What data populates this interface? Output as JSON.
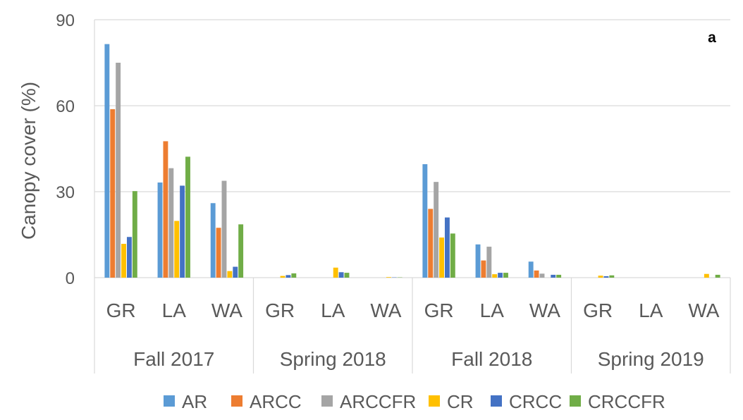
{
  "panel_label": "a",
  "chart_data": {
    "type": "bar",
    "title": "",
    "xlabel": "",
    "ylabel": "Canopy cover (%)",
    "ylim": [
      0,
      90
    ],
    "yticks": [
      "0",
      "30",
      "60",
      "90"
    ],
    "grid": true,
    "legend_position": "bottom",
    "groups": [
      {
        "label": "Fall 2017",
        "sites": [
          "GR",
          "LA",
          "WA"
        ]
      },
      {
        "label": "Spring 2018",
        "sites": [
          "GR",
          "LA",
          "WA"
        ]
      },
      {
        "label": "Fall 2018",
        "sites": [
          "GR",
          "LA",
          "WA"
        ]
      },
      {
        "label": "Spring 2019",
        "sites": [
          "GR",
          "LA",
          "WA"
        ]
      }
    ],
    "categories": [
      "Fall 2017 GR",
      "Fall 2017 LA",
      "Fall 2017 WA",
      "Spring 2018 GR",
      "Spring 2018 LA",
      "Spring 2018 WA",
      "Fall 2018 GR",
      "Fall 2018 LA",
      "Fall 2018 WA",
      "Spring 2019 GR",
      "Spring 2019 LA",
      "Spring 2019 WA"
    ],
    "series": [
      {
        "name": "AR",
        "color": "#5B9BD5",
        "values": [
          81.5,
          33.2,
          26.0,
          0.0,
          0.0,
          0.0,
          39.6,
          11.6,
          5.6,
          0.0,
          0.0,
          0.0
        ]
      },
      {
        "name": "ARCC",
        "color": "#ED7D31",
        "values": [
          58.8,
          47.6,
          17.4,
          0.0,
          0.0,
          0.0,
          24.0,
          6.0,
          2.5,
          0.0,
          0.0,
          0.0
        ]
      },
      {
        "name": "ARCCFR",
        "color": "#A5A5A5",
        "values": [
          75.0,
          38.2,
          33.8,
          0.0,
          0.0,
          0.0,
          33.4,
          10.8,
          1.4,
          0.0,
          0.0,
          0.0
        ]
      },
      {
        "name": "CR",
        "color": "#FFC000",
        "values": [
          11.8,
          19.8,
          2.3,
          0.6,
          3.5,
          0.2,
          14.0,
          1.2,
          0.0,
          0.7,
          0.0,
          1.3
        ]
      },
      {
        "name": "CRCC",
        "color": "#4472C4",
        "values": [
          14.2,
          32.1,
          3.8,
          0.9,
          1.9,
          0.1,
          21.0,
          1.7,
          1.0,
          0.5,
          0.0,
          0.0
        ]
      },
      {
        "name": "CRCCFR",
        "color": "#70AD47",
        "values": [
          30.2,
          42.2,
          18.6,
          1.5,
          1.7,
          0.1,
          15.4,
          1.7,
          1.0,
          0.8,
          0.0,
          1.0
        ]
      }
    ]
  }
}
